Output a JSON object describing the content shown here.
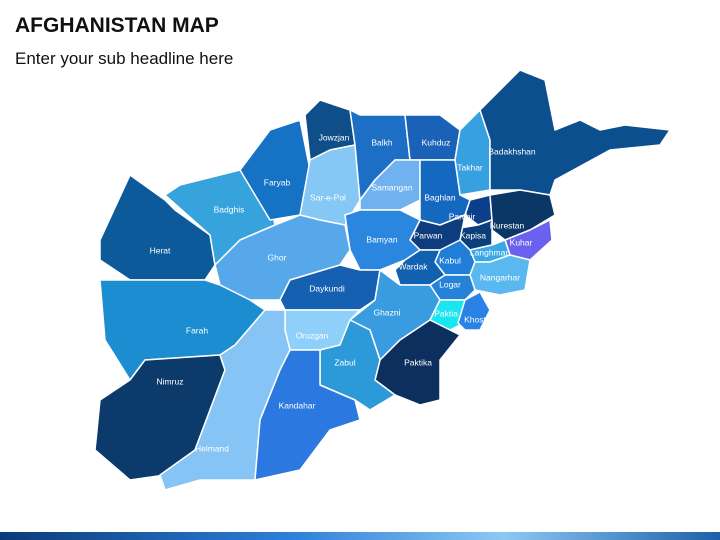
{
  "header": {
    "title": "AFGHANISTAN MAP",
    "subtitle": "Enter your sub headline here"
  },
  "map": {
    "regions": [
      {
        "name": "Herat"
      },
      {
        "name": "Badghis"
      },
      {
        "name": "Faryab"
      },
      {
        "name": "Jowzjan"
      },
      {
        "name": "Sar-e-Pol"
      },
      {
        "name": "Balkh"
      },
      {
        "name": "Kuhduz"
      },
      {
        "name": "Samangan"
      },
      {
        "name": "Takhar"
      },
      {
        "name": "Badakhshan"
      },
      {
        "name": "Baghlan"
      },
      {
        "name": "Panjhir"
      },
      {
        "name": "Nurestan"
      },
      {
        "name": "Kuhar"
      },
      {
        "name": "Kapisa"
      },
      {
        "name": "Parwan"
      },
      {
        "name": "Bamyan"
      },
      {
        "name": "Langhman"
      },
      {
        "name": "Kabul"
      },
      {
        "name": "Wardak"
      },
      {
        "name": "Nangarhar"
      },
      {
        "name": "Logar"
      },
      {
        "name": "Ghor"
      },
      {
        "name": "Daykundi"
      },
      {
        "name": "Ghazni"
      },
      {
        "name": "Paktia"
      },
      {
        "name": "Khost"
      },
      {
        "name": "Paktika"
      },
      {
        "name": "Farah"
      },
      {
        "name": "Oruzgan"
      },
      {
        "name": "Zabul"
      },
      {
        "name": "Nimruz"
      },
      {
        "name": "Helmand"
      },
      {
        "name": "Kandahar"
      }
    ]
  }
}
